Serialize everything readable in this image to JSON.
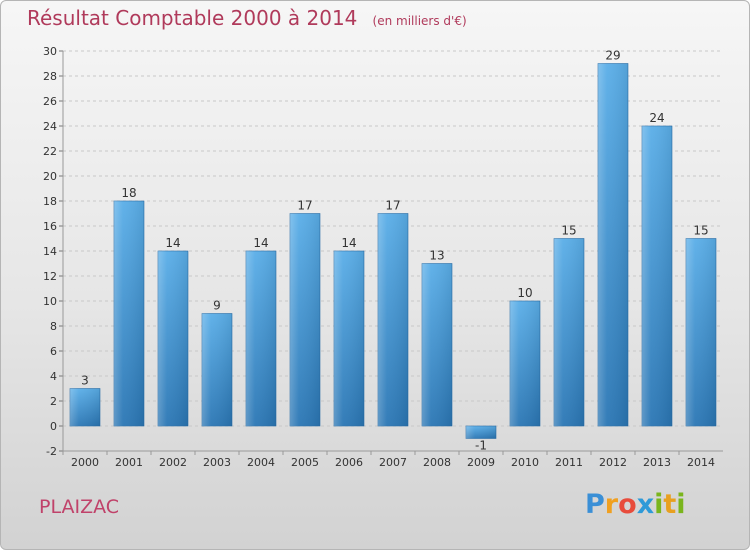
{
  "title": "Résultat Comptable 2000 à 2014",
  "subtitle": "(en milliers d'€)",
  "commune": "PLAIZAC",
  "logo": {
    "letters": [
      "P",
      "r",
      "o",
      "x",
      "i",
      "t",
      "i"
    ],
    "colors": [
      "#3a8fd6",
      "#f0a020",
      "#e84c3c",
      "#2e9ad8",
      "#7ab51d",
      "#e8a020",
      "#7ab51d"
    ]
  },
  "colors": {
    "bar": "#3d95d9",
    "title": "#b03a5b",
    "axis": "#333333",
    "grid": "#c8c8c8"
  },
  "chart_data": {
    "type": "bar",
    "categories": [
      "2000",
      "2001",
      "2002",
      "2003",
      "2004",
      "2005",
      "2006",
      "2007",
      "2008",
      "2009",
      "2010",
      "2011",
      "2012",
      "2013",
      "2014"
    ],
    "values": [
      3,
      18,
      14,
      9,
      14,
      17,
      14,
      17,
      13,
      -1,
      10,
      15,
      29,
      24,
      15
    ],
    "data_labels": [
      "3",
      "18",
      "14",
      "9",
      "14",
      "17",
      "14",
      "17",
      "13",
      "-1",
      "10",
      "15",
      "29",
      "24",
      "15"
    ],
    "ylim": [
      -2,
      30
    ],
    "yticks": [
      -2,
      0,
      2,
      4,
      6,
      8,
      10,
      12,
      14,
      16,
      18,
      20,
      22,
      24,
      26,
      28,
      30
    ],
    "grid": true,
    "xlabel": "",
    "ylabel": ""
  }
}
